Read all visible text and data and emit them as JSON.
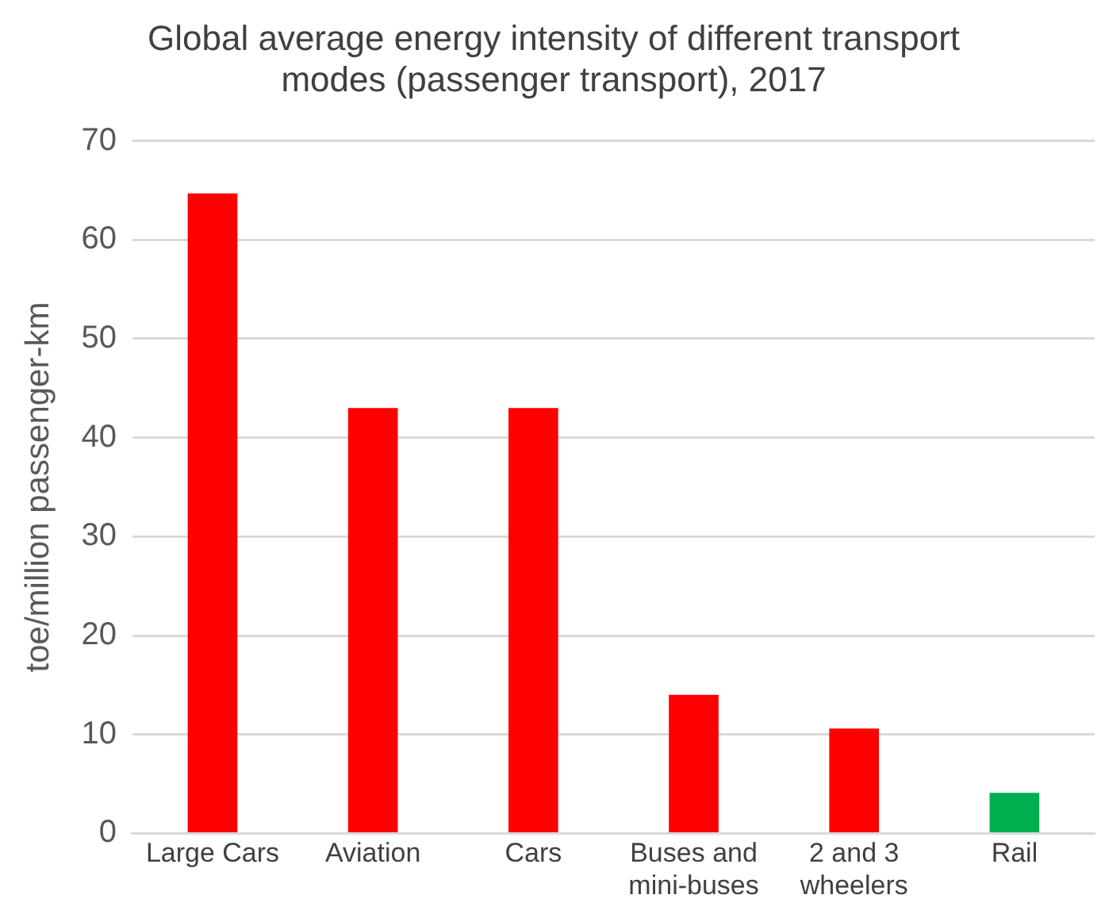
{
  "chart_data": {
    "type": "bar",
    "title": "Global average energy intensity of different transport modes (passenger transport), 2017",
    "ylabel": "toe/million passenger-km",
    "categories": [
      "Large Cars",
      "Aviation",
      "Cars",
      "Buses and mini-buses",
      "2 and 3 wheelers",
      "Rail"
    ],
    "values": [
      64.7,
      43.0,
      43.0,
      14.0,
      10.6,
      4.1
    ],
    "colors": [
      "#ff0000",
      "#ff0000",
      "#ff0000",
      "#ff0000",
      "#ff0000",
      "#00b050"
    ],
    "ylim": [
      0,
      70
    ],
    "yticks": [
      0,
      10,
      20,
      30,
      40,
      50,
      60,
      70
    ],
    "grid": "y",
    "legend": false
  }
}
